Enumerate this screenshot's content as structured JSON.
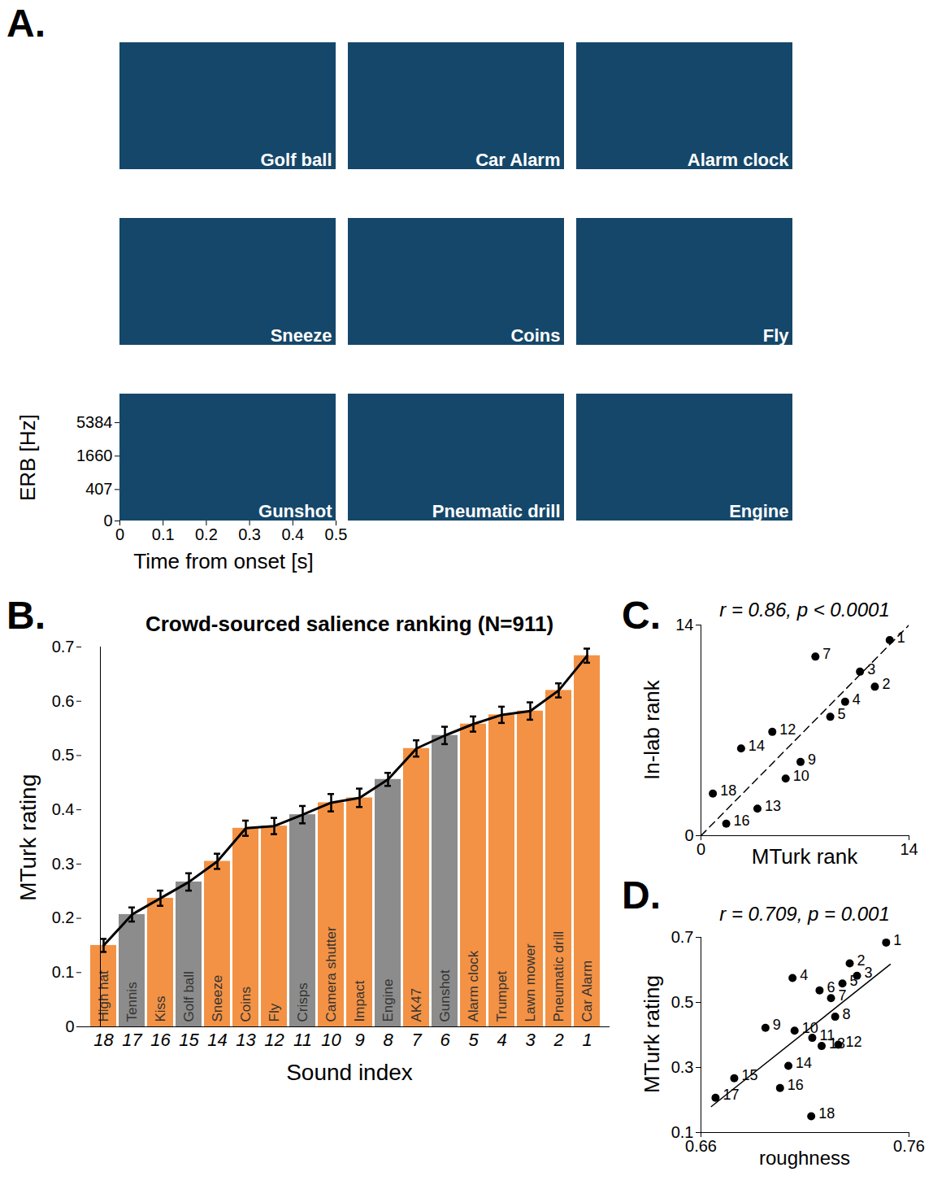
{
  "chart_data": [
    {
      "type": "spectrogram",
      "panel_label": "A.",
      "panels": [
        "Golf ball",
        "Car Alarm",
        "Alarm clock",
        "Sneeze",
        "Coins",
        "Fly",
        "Gunshot",
        "Pneumatic drill",
        "Engine"
      ],
      "xlabel": "Time from onset [s]",
      "ylabel": "ERB [Hz]",
      "xlim": [
        0,
        0.5
      ],
      "xticks": [
        0,
        0.1,
        0.2,
        0.3,
        0.4,
        0.5
      ],
      "ylim": [
        0,
        14000
      ],
      "yticks": [
        0,
        407,
        1660,
        5384
      ]
    },
    {
      "type": "bar",
      "panel_label": "B.",
      "title": "Crowd-sourced salience ranking (N=911)",
      "xlabel": "Sound index",
      "ylabel": "MTurk rating",
      "categories": [
        "18",
        "17",
        "16",
        "15",
        "14",
        "13",
        "12",
        "11",
        "10",
        "9",
        "8",
        "7",
        "6",
        "5",
        "4",
        "3",
        "2",
        "1"
      ],
      "bar_labels": [
        "High hat",
        "Tennis",
        "Kiss",
        "Golf ball",
        "Sneeze",
        "Coins",
        "Fly",
        "Crisps",
        "Camera shutter",
        "Impact",
        "Engine",
        "AK47",
        "Gunshot",
        "Alarm clock",
        "Trumpet",
        "Lawn mower",
        "Pneumatic drill",
        "Car Alarm"
      ],
      "values": [
        0.15,
        0.207,
        0.237,
        0.267,
        0.305,
        0.366,
        0.37,
        0.391,
        0.413,
        0.422,
        0.456,
        0.513,
        0.537,
        0.558,
        0.575,
        0.582,
        0.62,
        0.684
      ],
      "errors": [
        0.012,
        0.013,
        0.014,
        0.016,
        0.014,
        0.014,
        0.015,
        0.016,
        0.016,
        0.017,
        0.012,
        0.015,
        0.016,
        0.014,
        0.015,
        0.016,
        0.013,
        0.013
      ],
      "colors": [
        "#f39245",
        "#8c8c8c",
        "#f39245",
        "#8c8c8c",
        "#f39245",
        "#f39245",
        "#f39245",
        "#8c8c8c",
        "#f39245",
        "#f39245",
        "#8c8c8c",
        "#f39245",
        "#8c8c8c",
        "#f39245",
        "#f39245",
        "#f39245",
        "#f39245",
        "#f39245"
      ],
      "ylim": [
        0,
        0.7
      ],
      "yticks": [
        0,
        0.1,
        0.2,
        0.3,
        0.4,
        0.5,
        0.6,
        0.7
      ]
    },
    {
      "type": "scatter",
      "panel_label": "C.",
      "title": "r = 0.86, p < 0.0001",
      "xlabel": "MTurk rank",
      "ylabel": "In-lab rank",
      "x": [
        12.7,
        10.7,
        11.7,
        7.7,
        9.7,
        8.7,
        4.8,
        2.7,
        6.7,
        5.7,
        0.8,
        3.8,
        1.7
      ],
      "y": [
        13.0,
        10.9,
        9.9,
        11.9,
        8.9,
        7.9,
        6.9,
        5.8,
        4.9,
        3.8,
        2.8,
        1.8,
        0.8
      ],
      "point_labels": [
        "1",
        "3",
        "2",
        "7",
        "4",
        "5",
        "12",
        "14",
        "9",
        "10",
        "18",
        "13",
        "16"
      ],
      "color": "#000000",
      "xlim": [
        0,
        14
      ],
      "xticks": [
        0,
        14
      ],
      "ylim": [
        0,
        14
      ],
      "yticks": [
        0,
        14
      ],
      "reference_line": {
        "x": [
          0,
          14
        ],
        "y": [
          0,
          14
        ],
        "line_style": "dashed"
      }
    },
    {
      "type": "scatter",
      "panel_label": "D.",
      "title": "r = 0.709, p = 0.001",
      "xlabel": "roughness",
      "ylabel": "MTurk rating",
      "x": [
        0.749,
        0.7315,
        0.735,
        0.704,
        0.728,
        0.717,
        0.7225,
        0.7245,
        0.691,
        0.705,
        0.7135,
        0.726,
        0.718,
        0.702,
        0.676,
        0.698,
        0.667,
        0.713
      ],
      "y": [
        0.684,
        0.62,
        0.582,
        0.575,
        0.558,
        0.537,
        0.513,
        0.456,
        0.422,
        0.413,
        0.391,
        0.37,
        0.366,
        0.305,
        0.267,
        0.237,
        0.207,
        0.15
      ],
      "point_labels": [
        "1",
        "2",
        "3",
        "4",
        "5",
        "6",
        "7",
        "8",
        "9",
        "10",
        "11",
        "12",
        "13",
        "14",
        "15",
        "16",
        "17",
        "18"
      ],
      "color": "#000000",
      "xlim": [
        0.66,
        0.76
      ],
      "xticks": [
        0.66,
        0.76
      ],
      "ylim": [
        0.1,
        0.7
      ],
      "yticks": [
        0.1,
        0.3,
        0.5,
        0.7
      ],
      "reference_line": {
        "x": [
          0.665,
          0.751
        ],
        "y": [
          0.18,
          0.617
        ],
        "line_style": "solid"
      }
    }
  ]
}
